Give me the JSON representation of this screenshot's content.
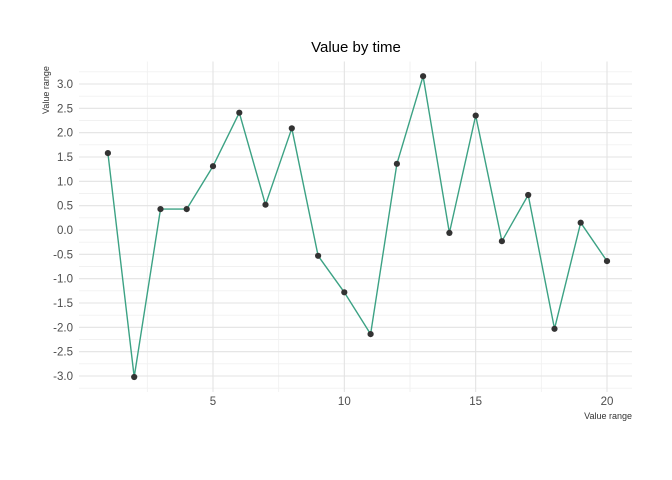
{
  "window": {
    "background": "#ffffff"
  },
  "chart_data": {
    "type": "line",
    "title": "Value by time",
    "xlabel": "Value range",
    "ylabel": "Value range",
    "x": [
      1,
      2,
      3,
      4,
      5,
      6,
      7,
      8,
      9,
      10,
      11,
      12,
      13,
      14,
      15,
      16,
      17,
      18,
      19,
      20
    ],
    "y": [
      1.58,
      -3.02,
      0.43,
      0.43,
      1.31,
      2.41,
      0.52,
      2.09,
      -0.53,
      -1.28,
      -2.14,
      1.36,
      3.16,
      -0.06,
      2.35,
      -0.23,
      0.72,
      -2.03,
      0.15,
      -0.64
    ],
    "x_ticks": [
      5,
      10,
      15,
      20
    ],
    "y_ticks": [
      3.0,
      2.5,
      2.0,
      1.5,
      1.0,
      0.5,
      0.0,
      -0.5,
      -1.0,
      -1.5,
      -2.0,
      -2.5,
      -3.0
    ],
    "x_minor_ticks": [
      2.5,
      7.5,
      12.5,
      17.5
    ],
    "y_minor_ticks": [
      3.25,
      2.75,
      2.25,
      1.75,
      1.25,
      0.75,
      0.25,
      -0.25,
      -0.75,
      -1.25,
      -1.75,
      -2.25,
      -2.75,
      -3.25
    ],
    "xlim": [
      0.05,
      20.95
    ],
    "ylim": [
      -3.33,
      3.46
    ],
    "grid": true,
    "legend": false,
    "colors": {
      "line": "#3ca284",
      "point": "#333333",
      "grid_major": "#e3e3e3",
      "grid_minor": "#f1f1f1",
      "tick_label": "#4d4d4d",
      "axis_title": "#333333",
      "title": "#000000",
      "background": "#ffffff"
    }
  }
}
